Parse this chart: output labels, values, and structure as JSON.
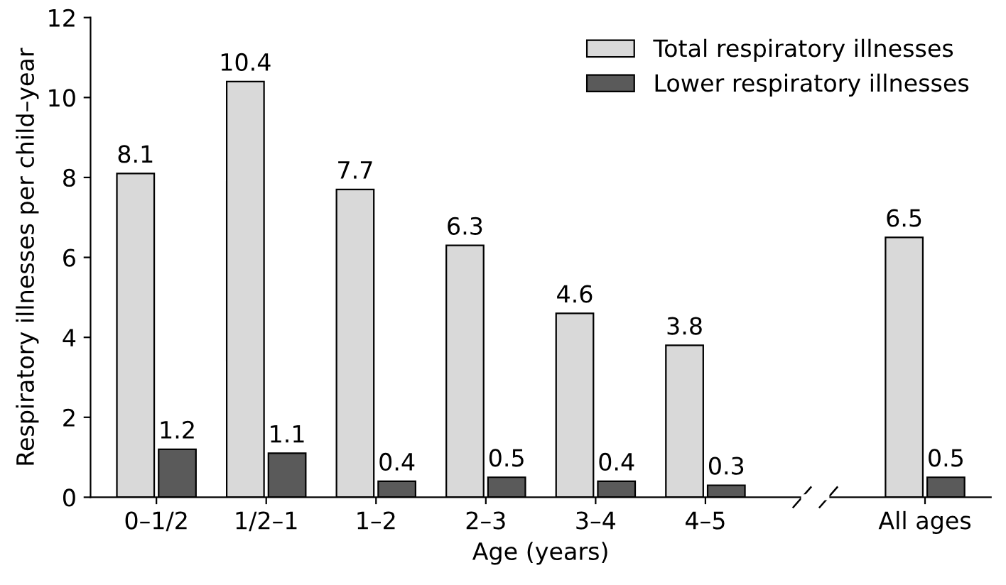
{
  "chart_data": {
    "type": "bar",
    "categories": [
      "0–1/2",
      "1/2–1",
      "1–2",
      "2–3",
      "3–4",
      "4–5",
      null,
      "All ages"
    ],
    "series": [
      {
        "name": "Total respiratory illnesses",
        "color": "#d9d9d9",
        "values": [
          8.1,
          10.4,
          7.7,
          6.3,
          4.6,
          3.8,
          null,
          6.5
        ]
      },
      {
        "name": "Lower respiratory illnesses",
        "color": "#5a5a5a",
        "values": [
          1.2,
          1.1,
          0.4,
          0.5,
          0.4,
          0.3,
          null,
          0.5
        ]
      }
    ],
    "xlabel": "Age (years)",
    "ylabel": "Respiratory illnesses per child–year",
    "ylim": [
      0,
      12
    ],
    "yticks": [
      0,
      2,
      4,
      6,
      8,
      10,
      12
    ],
    "data_labels": true,
    "legend": "top right",
    "grid": false
  }
}
